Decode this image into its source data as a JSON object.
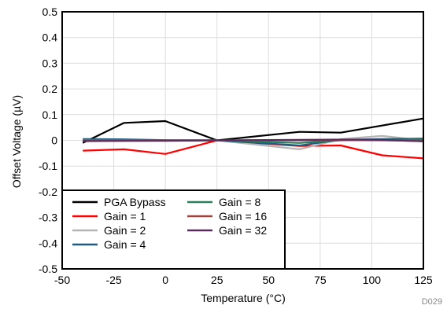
{
  "chart_data": {
    "type": "line",
    "xlabel": "Temperature (°C)",
    "ylabel": "Offset Voltage (µV)",
    "xlim": [
      -50,
      125
    ],
    "ylim": [
      -0.5,
      0.5
    ],
    "xticks": [
      -50,
      -25,
      0,
      25,
      50,
      75,
      100,
      125
    ],
    "xtick_labels": [
      "-50",
      "-25",
      "0",
      "25",
      "50",
      "75",
      "100",
      "125"
    ],
    "yticks": [
      -0.5,
      -0.4,
      -0.3,
      -0.2,
      -0.1,
      0,
      0.1,
      0.2,
      0.3,
      0.4,
      0.5
    ],
    "ytick_labels": [
      "-0.5",
      "-0.4",
      "-0.3",
      "-0.2",
      "-0.1",
      "0",
      "0.1",
      "0.2",
      "0.3",
      "0.4",
      "0.5"
    ],
    "grid": true,
    "legend_position": "bottom-left",
    "figure_id": "D029",
    "series": [
      {
        "name": "PGA Bypass",
        "color": "#000000",
        "x": [
          -40,
          -20,
          0,
          25,
          65,
          85,
          125
        ],
        "y": [
          -0.01,
          0.068,
          0.075,
          0.0,
          0.033,
          0.03,
          0.085
        ]
      },
      {
        "name": "Gain = 1",
        "color": "#ff0000",
        "x": [
          -40,
          -20,
          0,
          25,
          65,
          85,
          105,
          125
        ],
        "y": [
          -0.04,
          -0.035,
          -0.053,
          0.0,
          -0.022,
          -0.02,
          -0.058,
          -0.07
        ]
      },
      {
        "name": "Gain = 2",
        "color": "#b4b4b4",
        "x": [
          -40,
          -20,
          0,
          25,
          65,
          85,
          105,
          125
        ],
        "y": [
          0.003,
          0.002,
          0.0,
          0.0,
          -0.035,
          0.005,
          0.017,
          0.0
        ]
      },
      {
        "name": "Gain = 4",
        "color": "#1f5a82",
        "x": [
          -40,
          -20,
          0,
          25,
          65,
          85,
          105,
          125
        ],
        "y": [
          0.005,
          0.004,
          0.001,
          0.0,
          -0.02,
          0.002,
          0.005,
          0.007
        ]
      },
      {
        "name": "Gain = 8",
        "color": "#2e7d5b",
        "x": [
          -40,
          -20,
          0,
          25,
          65,
          85,
          105,
          125
        ],
        "y": [
          0.002,
          0.001,
          0.0,
          0.0,
          -0.01,
          0.0,
          0.002,
          0.003
        ]
      },
      {
        "name": "Gain = 16",
        "color": "#a0413c",
        "x": [
          -40,
          -20,
          0,
          25,
          65,
          85,
          105,
          125
        ],
        "y": [
          -0.002,
          -0.002,
          -0.001,
          0.0,
          0.0,
          0.001,
          0.0,
          -0.003
        ]
      },
      {
        "name": "Gain = 32",
        "color": "#5b2a5e",
        "x": [
          -40,
          -20,
          0,
          25,
          65,
          85,
          105,
          125
        ],
        "y": [
          -0.003,
          -0.002,
          -0.002,
          0.0,
          0.002,
          0.003,
          0.002,
          -0.004
        ]
      }
    ]
  }
}
